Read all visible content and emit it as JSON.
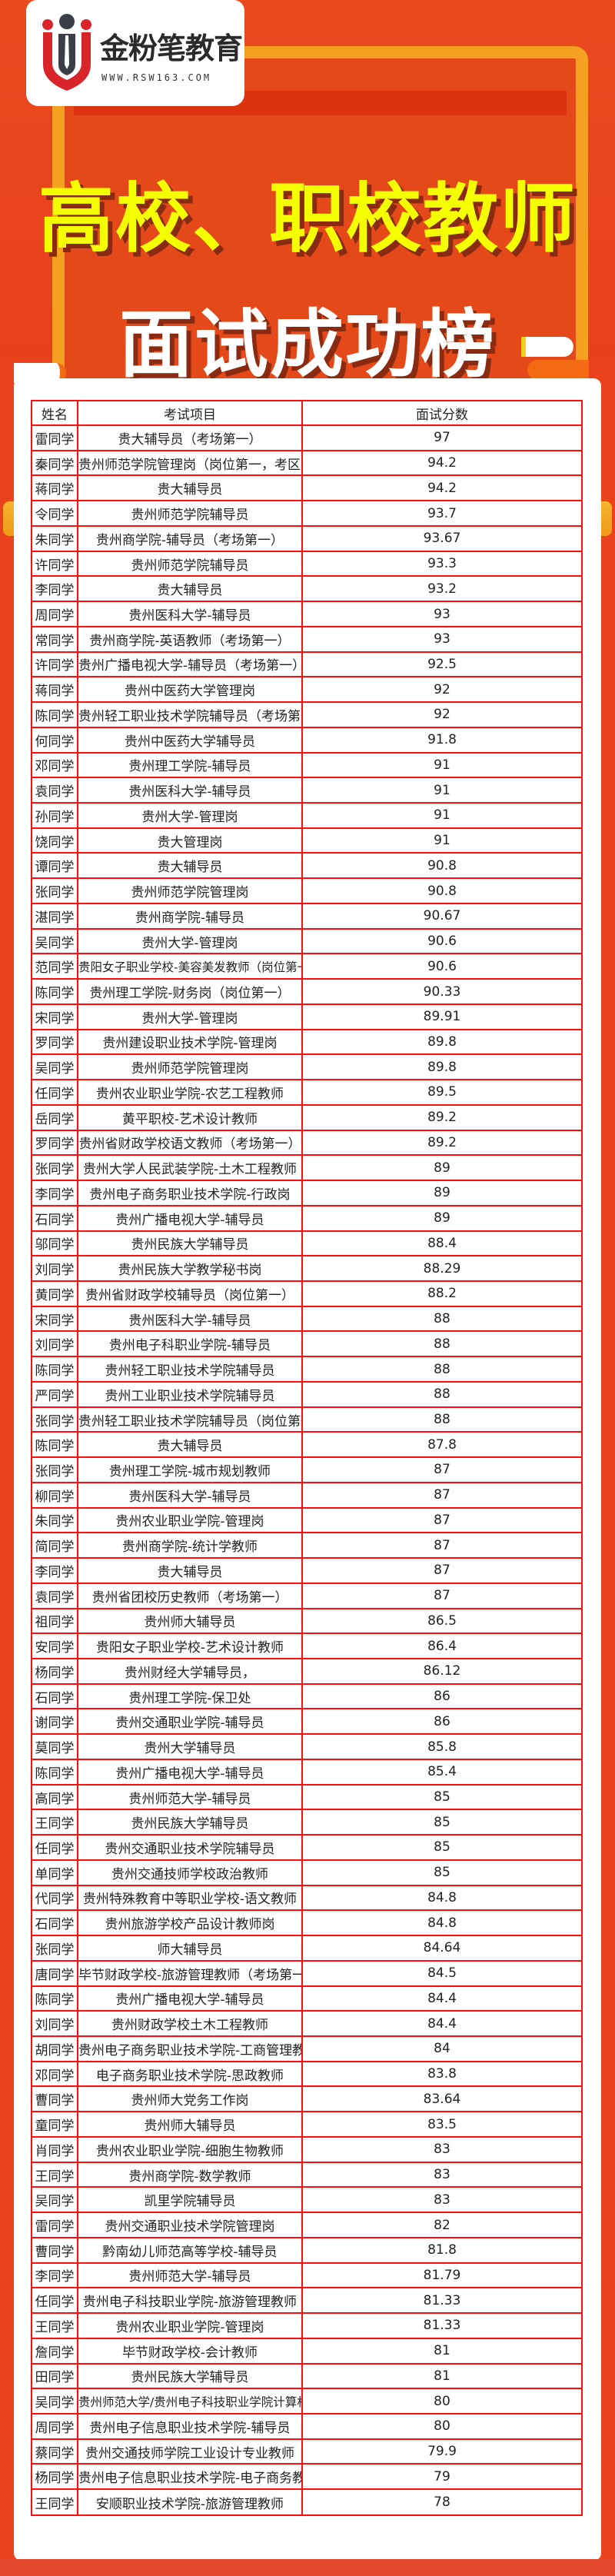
{
  "brand": {
    "name": "金粉笔教育",
    "url": "WWW.RSW163.COM",
    "colors": {
      "background": "#e9421d",
      "title": "#f4ff00",
      "border": "#ff0d0d",
      "board": "#f4a020"
    }
  },
  "hero": {
    "title_line1": "高校、职校教师",
    "title_line2": "面试成功榜"
  },
  "table": {
    "headers": [
      "姓名",
      "考试项目",
      "面试分数"
    ],
    "rows": [
      [
        "雷同学",
        "贵大辅导员（考场第一）",
        "97"
      ],
      [
        "秦同学",
        "贵州师范学院管理岗（岗位第一，考区第二）",
        "94.2"
      ],
      [
        "蒋同学",
        "贵大辅导员",
        "94.2"
      ],
      [
        "令同学",
        "贵州师范学院辅导员",
        "93.7"
      ],
      [
        "朱同学",
        "贵州商学院-辅导员（考场第一）",
        "93.67"
      ],
      [
        "许同学",
        "贵州师范学院辅导员",
        "93.3"
      ],
      [
        "李同学",
        "贵大辅导员",
        "93.2"
      ],
      [
        "周同学",
        "贵州医科大学-辅导员",
        "93"
      ],
      [
        "常同学",
        "贵州商学院-英语教师（考场第一）",
        "93"
      ],
      [
        "许同学",
        "贵州广播电视大学-辅导员（考场第一）",
        "92.5"
      ],
      [
        "蒋同学",
        "贵州中医药大学管理岗",
        "92"
      ],
      [
        "陈同学",
        "贵州轻工职业技术学院辅导员（考场第一）",
        "92"
      ],
      [
        "何同学",
        "贵州中医药大学辅导员",
        "91.8"
      ],
      [
        "邓同学",
        "贵州理工学院-辅导员",
        "91"
      ],
      [
        "袁同学",
        "贵州医科大学-辅导员",
        "91"
      ],
      [
        "孙同学",
        "贵州大学-管理岗",
        "91"
      ],
      [
        "饶同学",
        "贵大管理岗",
        "91"
      ],
      [
        "谭同学",
        "贵大辅导员",
        "90.8"
      ],
      [
        "张同学",
        "贵州师范学院管理岗",
        "90.8"
      ],
      [
        "湛同学",
        "贵州商学院-辅导员",
        "90.67"
      ],
      [
        "吴同学",
        "贵州大学-管理岗",
        "90.6"
      ],
      [
        "范同学",
        "贵阳女子职业学校-美容美发教师（岗位第一）",
        "90.6"
      ],
      [
        "陈同学",
        "贵州理工学院-财务岗（岗位第一）",
        "90.33"
      ],
      [
        "宋同学",
        "贵州大学-管理岗",
        "89.91"
      ],
      [
        "罗同学",
        "贵州建设职业技术学院-管理岗",
        "89.8"
      ],
      [
        "吴同学",
        "贵州师范学院管理岗",
        "89.8"
      ],
      [
        "任同学",
        "贵州农业职业学院-农艺工程教师",
        "89.5"
      ],
      [
        "岳同学",
        "黄平职校-艺术设计教师",
        "89.2"
      ],
      [
        "罗同学",
        "贵州省财政学校语文教师（考场第一）",
        "89.2"
      ],
      [
        "张同学",
        "贵州大学人民武装学院-土木工程教师",
        "89"
      ],
      [
        "李同学",
        "贵州电子商务职业技术学院-行政岗",
        "89"
      ],
      [
        "石同学",
        "贵州广播电视大学-辅导员",
        "89"
      ],
      [
        "邬同学",
        "贵州民族大学辅导员",
        "88.4"
      ],
      [
        "刘同学",
        "贵州民族大学教学秘书岗",
        "88.29"
      ],
      [
        "黄同学",
        "贵州省财政学校辅导员（岗位第一）",
        "88.2"
      ],
      [
        "宋同学",
        "贵州医科大学-辅导员",
        "88"
      ],
      [
        "刘同学",
        "贵州电子科职业学院-辅导员",
        "88"
      ],
      [
        "陈同学",
        "贵州轻工职业技术学院辅导员",
        "88"
      ],
      [
        "严同学",
        "贵州工业职业技术学院辅导员",
        "88"
      ],
      [
        "张同学",
        "贵州轻工职业技术学院辅导员（岗位第一）",
        "88"
      ],
      [
        "陈同学",
        "贵大辅导员",
        "87.8"
      ],
      [
        "张同学",
        "贵州理工学院-城市规划教师",
        "87"
      ],
      [
        "柳同学",
        "贵州医科大学-辅导员",
        "87"
      ],
      [
        "朱同学",
        "贵州农业职业学院-管理岗",
        "87"
      ],
      [
        "简同学",
        "贵州商学院-统计学教师",
        "87"
      ],
      [
        "李同学",
        "贵大辅导员",
        "87"
      ],
      [
        "袁同学",
        "贵州省团校历史教师（考场第一）",
        "87"
      ],
      [
        "祖同学",
        "贵州师大辅导员",
        "86.5"
      ],
      [
        "安同学",
        "贵阳女子职业学校-艺术设计教师",
        "86.4"
      ],
      [
        "杨同学",
        "贵州财经大学辅导员，",
        "86.12"
      ],
      [
        "石同学",
        "贵州理工学院-保卫处",
        "86"
      ],
      [
        "谢同学",
        "贵州交通职业学院-辅导员",
        "86"
      ],
      [
        "莫同学",
        "贵州大学辅导员",
        "85.8"
      ],
      [
        "陈同学",
        "贵州广播电视大学-辅导员",
        "85.4"
      ],
      [
        "高同学",
        "贵州师范大学-辅导员",
        "85"
      ],
      [
        "王同学",
        "贵州民族大学辅导员",
        "85"
      ],
      [
        "任同学",
        "贵州交通职业技术学院辅导员",
        "85"
      ],
      [
        "单同学",
        "贵州交通技师学校政治教师",
        "85"
      ],
      [
        "代同学",
        "贵州特殊教育中等职业学校-语文教师",
        "84.8"
      ],
      [
        "石同学",
        "贵州旅游学校产品设计教师岗",
        "84.8"
      ],
      [
        "张同学",
        "师大辅导员",
        "84.64"
      ],
      [
        "唐同学",
        "毕节财政学校-旅游管理教师（考场第一）",
        "84.5"
      ],
      [
        "陈同学",
        "贵州广播电视大学-辅导员",
        "84.4"
      ],
      [
        "刘同学",
        "贵州财政学校土木工程教师",
        "84.4"
      ],
      [
        "胡同学",
        "贵州电子商务职业技术学院-工商管理教师",
        "84"
      ],
      [
        "邓同学",
        "电子商务职业技术学院-思政教师",
        "83.8"
      ],
      [
        "曹同学",
        "贵州师大党务工作岗",
        "83.64"
      ],
      [
        "童同学",
        "贵州师大辅导员",
        "83.5"
      ],
      [
        "肖同学",
        "贵州农业职业学院-细胞生物教师",
        "83"
      ],
      [
        "王同学",
        "贵州商学院-数学教师",
        "83"
      ],
      [
        "吴同学",
        "凯里学院辅导员",
        "83"
      ],
      [
        "雷同学",
        "贵州交通职业技术学院管理岗",
        "82"
      ],
      [
        "曹同学",
        "黔南幼儿师范高等学校-辅导员",
        "81.8"
      ],
      [
        "李同学",
        "贵州师范大学-辅导员",
        "81.79"
      ],
      [
        "任同学",
        "贵州电子科技职业学院-旅游管理教师",
        "81.33"
      ],
      [
        "王同学",
        "贵州农业职业学院-管理岗",
        "81.33"
      ],
      [
        "詹同学",
        "毕节财政学校-会计教师",
        "81"
      ],
      [
        "田同学",
        "贵州民族大学辅导员",
        "81"
      ],
      [
        "吴同学",
        "贵州师范大学/贵州电子科技职业学院计算机教师",
        "80"
      ],
      [
        "周同学",
        "贵州电子信息职业技术学院-辅导员",
        "80"
      ],
      [
        "蔡同学",
        "贵州交通技师学院工业设计专业教师",
        "79.9"
      ],
      [
        "杨同学",
        "贵州电子信息职业技术学院-电子商务教师",
        "79"
      ],
      [
        "王同学",
        "安顺职业技术学院-旅游管理教师",
        "78"
      ]
    ]
  }
}
